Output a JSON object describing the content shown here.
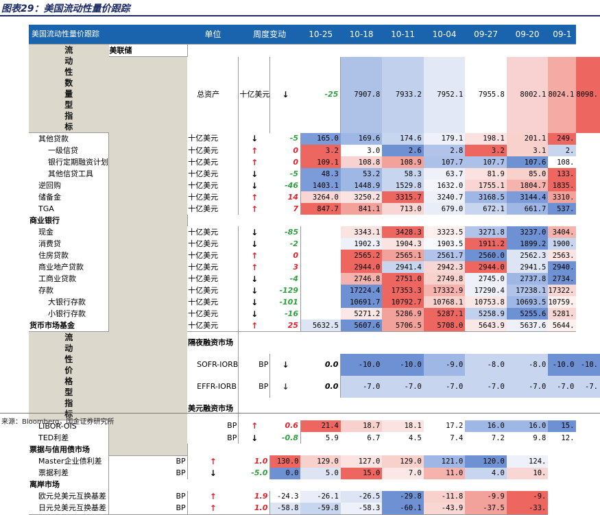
{
  "figure_title": "图表29：美国流动性量价跟踪",
  "source": "来源：Bloomberg，国金证券研究所",
  "header": {
    "name": "美国流动性量价跟踪",
    "unit": "单位",
    "change": "周度变动",
    "dates": [
      "10-25",
      "10-18",
      "10-11",
      "10-04",
      "09-27",
      "09-20",
      "09-1"
    ]
  },
  "groups": {
    "quantity": [
      "流",
      "动",
      "性",
      "数",
      "量",
      "型",
      "指",
      "标"
    ],
    "price": [
      "流",
      "动",
      "性",
      "价",
      "格",
      "型",
      "指",
      "标"
    ]
  },
  "colors": {
    "header_bg": "#1a63ad",
    "group_bg": "#dcd8cc",
    "up_arrow": "#e0202a",
    "down_arrow": "#2f9e3e"
  },
  "rows": [
    {
      "name": "美联储",
      "section": "quantity",
      "header": true
    },
    {
      "name": "总资产",
      "indent": 1,
      "unit": "十亿美元",
      "dir": "down",
      "change": "-25",
      "values": [
        "7907.8",
        "7933.2",
        "7952.1",
        "7955.8",
        "8002.1",
        "8024.1",
        "8098."
      ],
      "colors": [
        "#aec2e8",
        "#c1d0ec",
        "#e2e8f6",
        "#ffffff",
        "#f8d2d0",
        "#f6aaa4",
        "#ee6660"
      ]
    },
    {
      "name": "其他贷款",
      "indent": 1,
      "unit": "十亿美元",
      "dir": "down",
      "change": "-5",
      "values": [
        "165.0",
        "169.6",
        "174.6",
        "179.1",
        "198.1",
        "201.1",
        "249."
      ],
      "colors": [
        "#7b9bd9",
        "#9fb7e4",
        "#c8d5ef",
        "#eef1f9",
        "#fbe1df",
        "#f8d0cc",
        "#ee6660"
      ]
    },
    {
      "name": "一级信贷",
      "indent": 2,
      "unit": "十亿美元",
      "dir": "up",
      "change": "0",
      "values": [
        "3.2",
        "3.0",
        "2.6",
        "2.8",
        "3.2",
        "3.1",
        "2."
      ],
      "colors": [
        "#ee6660",
        "#ffffff",
        "#6e91d4",
        "#b1c3e8",
        "#ee6660",
        "#f8d0cc",
        "#c8d5ef"
      ]
    },
    {
      "name": "银行定期融资计划",
      "indent": 2,
      "unit": "十亿美元",
      "dir": "up",
      "change": "0",
      "values": [
        "109.1",
        "108.8",
        "108.9",
        "107.7",
        "107.7",
        "107.6",
        "108."
      ],
      "colors": [
        "#ee6660",
        "#f8d2d0",
        "#f3a19b",
        "#adc0e7",
        "#adc0e7",
        "#6e91d4",
        "#ffffff"
      ]
    },
    {
      "name": "其他信贷工具",
      "indent": 2,
      "unit": "十亿美元",
      "dir": "down",
      "change": "-5",
      "values": [
        "48.3",
        "53.2",
        "58.3",
        "63.7",
        "81.9",
        "85.0",
        "133."
      ],
      "colors": [
        "#7b9bd9",
        "#9fb7e4",
        "#c8d5ef",
        "#eef1f9",
        "#fbe1df",
        "#f8d0cc",
        "#ee6660"
      ]
    },
    {
      "name": "逆回购",
      "indent": 1,
      "unit": "十亿美元",
      "dir": "down",
      "change": "-46",
      "values": [
        "1403.1",
        "1448.9",
        "1529.8",
        "1632.0",
        "1755.1",
        "1804.7",
        "1835."
      ],
      "colors": [
        "#7b9bd9",
        "#9fb7e4",
        "#c8d5ef",
        "#f4f6fb",
        "#f9d6d3",
        "#f6b2ad",
        "#ee6660"
      ]
    },
    {
      "name": "储备金",
      "indent": 1,
      "unit": "十亿美元",
      "dir": "up",
      "change": "14",
      "values": [
        "3264.0",
        "3250.2",
        "3315.7",
        "3240.7",
        "3168.5",
        "3144.4",
        "3310."
      ],
      "colors": [
        "#f8d6d3",
        "#fbe3e1",
        "#ee6660",
        "#eef1f9",
        "#9fb7e4",
        "#7b9bd9",
        "#f3a19b"
      ]
    },
    {
      "name": "TGA",
      "indent": 1,
      "unit": "十亿美元",
      "dir": "up",
      "change": "7",
      "values": [
        "847.7",
        "841.1",
        "713.0",
        "679.0",
        "672.1",
        "661.7",
        "537."
      ],
      "colors": [
        "#ee6660",
        "#f3a19b",
        "#f8d6d3",
        "#e8edf7",
        "#c8d5ef",
        "#9fb7e4",
        "#6e91d4"
      ]
    },
    {
      "name": "商业银行",
      "section": "quantity",
      "header": true
    },
    {
      "name": "现金",
      "indent": 1,
      "unit": "十亿美元",
      "dir": "down",
      "change": "-85",
      "values": [
        "",
        "3343.1",
        "3428.3",
        "3323.5",
        "3271.8",
        "3237.0",
        "3404."
      ],
      "colors": [
        "#ffffff",
        "#fbe3e1",
        "#ee6660",
        "#fdf0ef",
        "#b1c3e8",
        "#6e91d4",
        "#f6b2ad"
      ]
    },
    {
      "name": "消费贷",
      "indent": 1,
      "unit": "十亿美元",
      "dir": "down",
      "change": "-2",
      "values": [
        "",
        "1902.3",
        "1904.3",
        "1903.5",
        "1911.2",
        "1899.2",
        "1900."
      ],
      "colors": [
        "#ffffff",
        "#eef1f9",
        "#fbe3e1",
        "#f8f9fc",
        "#ee6660",
        "#6e91d4",
        "#c8d5ef"
      ]
    },
    {
      "name": "住房贷款",
      "indent": 1,
      "unit": "十亿美元",
      "dir": "up",
      "change": "0",
      "values": [
        "",
        "2565.2",
        "2565.1",
        "2561.7",
        "2560.0",
        "2562.3",
        "2563."
      ],
      "colors": [
        "#ffffff",
        "#ee6660",
        "#f3a19b",
        "#b1c3e8",
        "#6e91d4",
        "#dde4f4",
        "#fbe3e1"
      ]
    },
    {
      "name": "商业地产贷款",
      "indent": 1,
      "unit": "十亿美元",
      "dir": "up",
      "change": "3",
      "values": [
        "",
        "2944.0",
        "2941.4",
        "2942.3",
        "2944.0",
        "2941.5",
        "2940."
      ],
      "colors": [
        "#ffffff",
        "#ee6660",
        "#c8d5ef",
        "#f8d6d3",
        "#ee6660",
        "#dde4f4",
        "#6e91d4"
      ]
    },
    {
      "name": "工商业贷款",
      "indent": 1,
      "unit": "十亿美元",
      "dir": "down",
      "change": "-4",
      "values": [
        "",
        "2746.8",
        "2751.0",
        "2749.8",
        "2745.0",
        "2737.8",
        "2734."
      ],
      "colors": [
        "#ffffff",
        "#f6b2ad",
        "#ee6660",
        "#f8d0cc",
        "#eef1f9",
        "#9fb7e4",
        "#6e91d4"
      ]
    },
    {
      "name": "存款",
      "indent": 1,
      "unit": "十亿美元",
      "dir": "down",
      "change": "-129",
      "values": [
        "",
        "17224.4",
        "17353.3",
        "17332.9",
        "17290.4",
        "17238.1",
        "17322."
      ],
      "colors": [
        "#ffffff",
        "#6e91d4",
        "#ee6660",
        "#f6b2ad",
        "#eef1f9",
        "#b1c3e8",
        "#f8d6d3"
      ]
    },
    {
      "name": "大银行存款",
      "indent": 2,
      "unit": "十亿美元",
      "dir": "down",
      "change": "-101",
      "values": [
        "",
        "10691.7",
        "10792.7",
        "10768.1",
        "10753.8",
        "10693.5",
        "10759."
      ],
      "colors": [
        "#ffffff",
        "#6e91d4",
        "#ee6660",
        "#f8d0cc",
        "#fbe7e5",
        "#9fb7e4",
        "#fdf0ef"
      ]
    },
    {
      "name": "小银行存款",
      "indent": 2,
      "unit": "十亿美元",
      "dir": "down",
      "change": "-16",
      "values": [
        "",
        "5271.2",
        "5286.9",
        "5287.1",
        "5258.9",
        "5255.6",
        "5281."
      ],
      "colors": [
        "#ffffff",
        "#fbe7e5",
        "#f3a19b",
        "#ee6660",
        "#c1d0ec",
        "#6e91d4",
        "#f8d6d3"
      ]
    },
    {
      "name": "货币市场基金",
      "indent": 0,
      "bold": true,
      "unit": "十亿美元",
      "dir": "up",
      "change": "25",
      "values": [
        "5632.5",
        "5607.6",
        "5706.5",
        "5708.0",
        "5643.9",
        "5637.6",
        "5644."
      ],
      "colors": [
        "#dde4f4",
        "#6e91d4",
        "#f3a19b",
        "#ee6660",
        "#fbe7e5",
        "#eef1f9",
        "#fdf0ef"
      ],
      "sec_end": true
    },
    {
      "name": "隔夜融资市场",
      "section": "price",
      "header": true
    },
    {
      "name": "SOFR-IORB",
      "indent": 1,
      "unit": "BP",
      "dir": "down",
      "change": "0.0",
      "values": [
        "-10.0",
        "-10.0",
        "-9.0",
        "-8.0",
        "-8.0",
        "-10.0",
        "-10."
      ],
      "colors": [
        "#6e91d4",
        "#6e91d4",
        "#9fb7e4",
        "#c8d5ef",
        "#c8d5ef",
        "#6e91d4",
        "#6e91d4"
      ]
    },
    {
      "name": "EFFR-IORB",
      "indent": 1,
      "unit": "BP",
      "dir": "dnk",
      "change": "0.0",
      "values": [
        "-7.0",
        "-7.0",
        "-7.0",
        "-7.0",
        "-7.0",
        "-7.0",
        "-7."
      ],
      "colors": [
        "#c8d5ef",
        "#c8d5ef",
        "#c8d5ef",
        "#c8d5ef",
        "#c8d5ef",
        "#c8d5ef",
        "#c8d5ef"
      ]
    },
    {
      "name": "美元融资市场",
      "section": "price",
      "header": true
    },
    {
      "name": "LIBOR-OIS",
      "indent": 1,
      "unit": "BP",
      "dir": "up",
      "change": "0.6",
      "values": [
        "21.4",
        "18.7",
        "18.1",
        "17.2",
        "16.0",
        "16.0",
        "15."
      ],
      "colors": [
        "#ee6660",
        "#f8d0cc",
        "#fbe3e1",
        "#ffffff",
        "#9fb7e4",
        "#9fb7e4",
        "#6e91d4"
      ]
    },
    {
      "name": "TED利差",
      "indent": 1,
      "unit": "BP",
      "dir": "down",
      "change": "-0.8",
      "values": [
        "5.9",
        "6.7",
        "4.5",
        "7.4",
        "7.2",
        "9.8",
        "12."
      ],
      "colors": [
        "#ffffff",
        "#ffffff",
        "#ffffff",
        "#ffffff",
        "#ffffff",
        "#ffffff",
        "#ffffff"
      ]
    },
    {
      "name": "票据与信用债市场",
      "section": "price",
      "header": true
    },
    {
      "name": "Master企业债利差",
      "indent": 1,
      "unit": "BP",
      "dir": "up",
      "change": "1.0",
      "values": [
        "130.0",
        "129.0",
        "127.0",
        "129.0",
        "121.0",
        "120.0",
        "124."
      ],
      "colors": [
        "#ee6660",
        "#f8d0cc",
        "#fbe3e1",
        "#f8d0cc",
        "#9fb7e4",
        "#6e91d4",
        "#eef1f9"
      ]
    },
    {
      "name": "票据利差",
      "indent": 1,
      "unit": "BP",
      "dir": "down",
      "change": "-5.0",
      "values": [
        "0.0",
        "5.0",
        "15.0",
        "7.0",
        "11.0",
        "4.0",
        "10."
      ],
      "colors": [
        "#6e91d4",
        "#dde4f4",
        "#ee6660",
        "#fbe7e5",
        "#f6b2ad",
        "#c8d5ef",
        "#f8d6d3"
      ]
    },
    {
      "name": "离岸市场",
      "section": "price",
      "header": true
    },
    {
      "name": "欧元兑美元互换基差",
      "indent": 1,
      "unit": "BP",
      "dir": "up",
      "change": "1.9",
      "values": [
        "-24.3",
        "-26.1",
        "-26.5",
        "-29.8",
        "-11.8",
        "-9.9",
        "-9."
      ],
      "colors": [
        "#ffffff",
        "#e8edf7",
        "#dde4f4",
        "#6e91d4",
        "#f8d0cc",
        "#f3a19b",
        "#ee6660"
      ]
    },
    {
      "name": "日元兑美元互换基差",
      "indent": 1,
      "unit": "BP",
      "dir": "up",
      "change": "1.0",
      "values": [
        "-58.8",
        "-59.8",
        "-58.3",
        "-60.1",
        "-43.9",
        "-37.5",
        "-33."
      ],
      "colors": [
        "#dde4f4",
        "#c8d5ef",
        "#eef1f9",
        "#6e91d4",
        "#f8d6d3",
        "#f3a19b",
        "#ee6660"
      ],
      "sec_end": true
    }
  ]
}
